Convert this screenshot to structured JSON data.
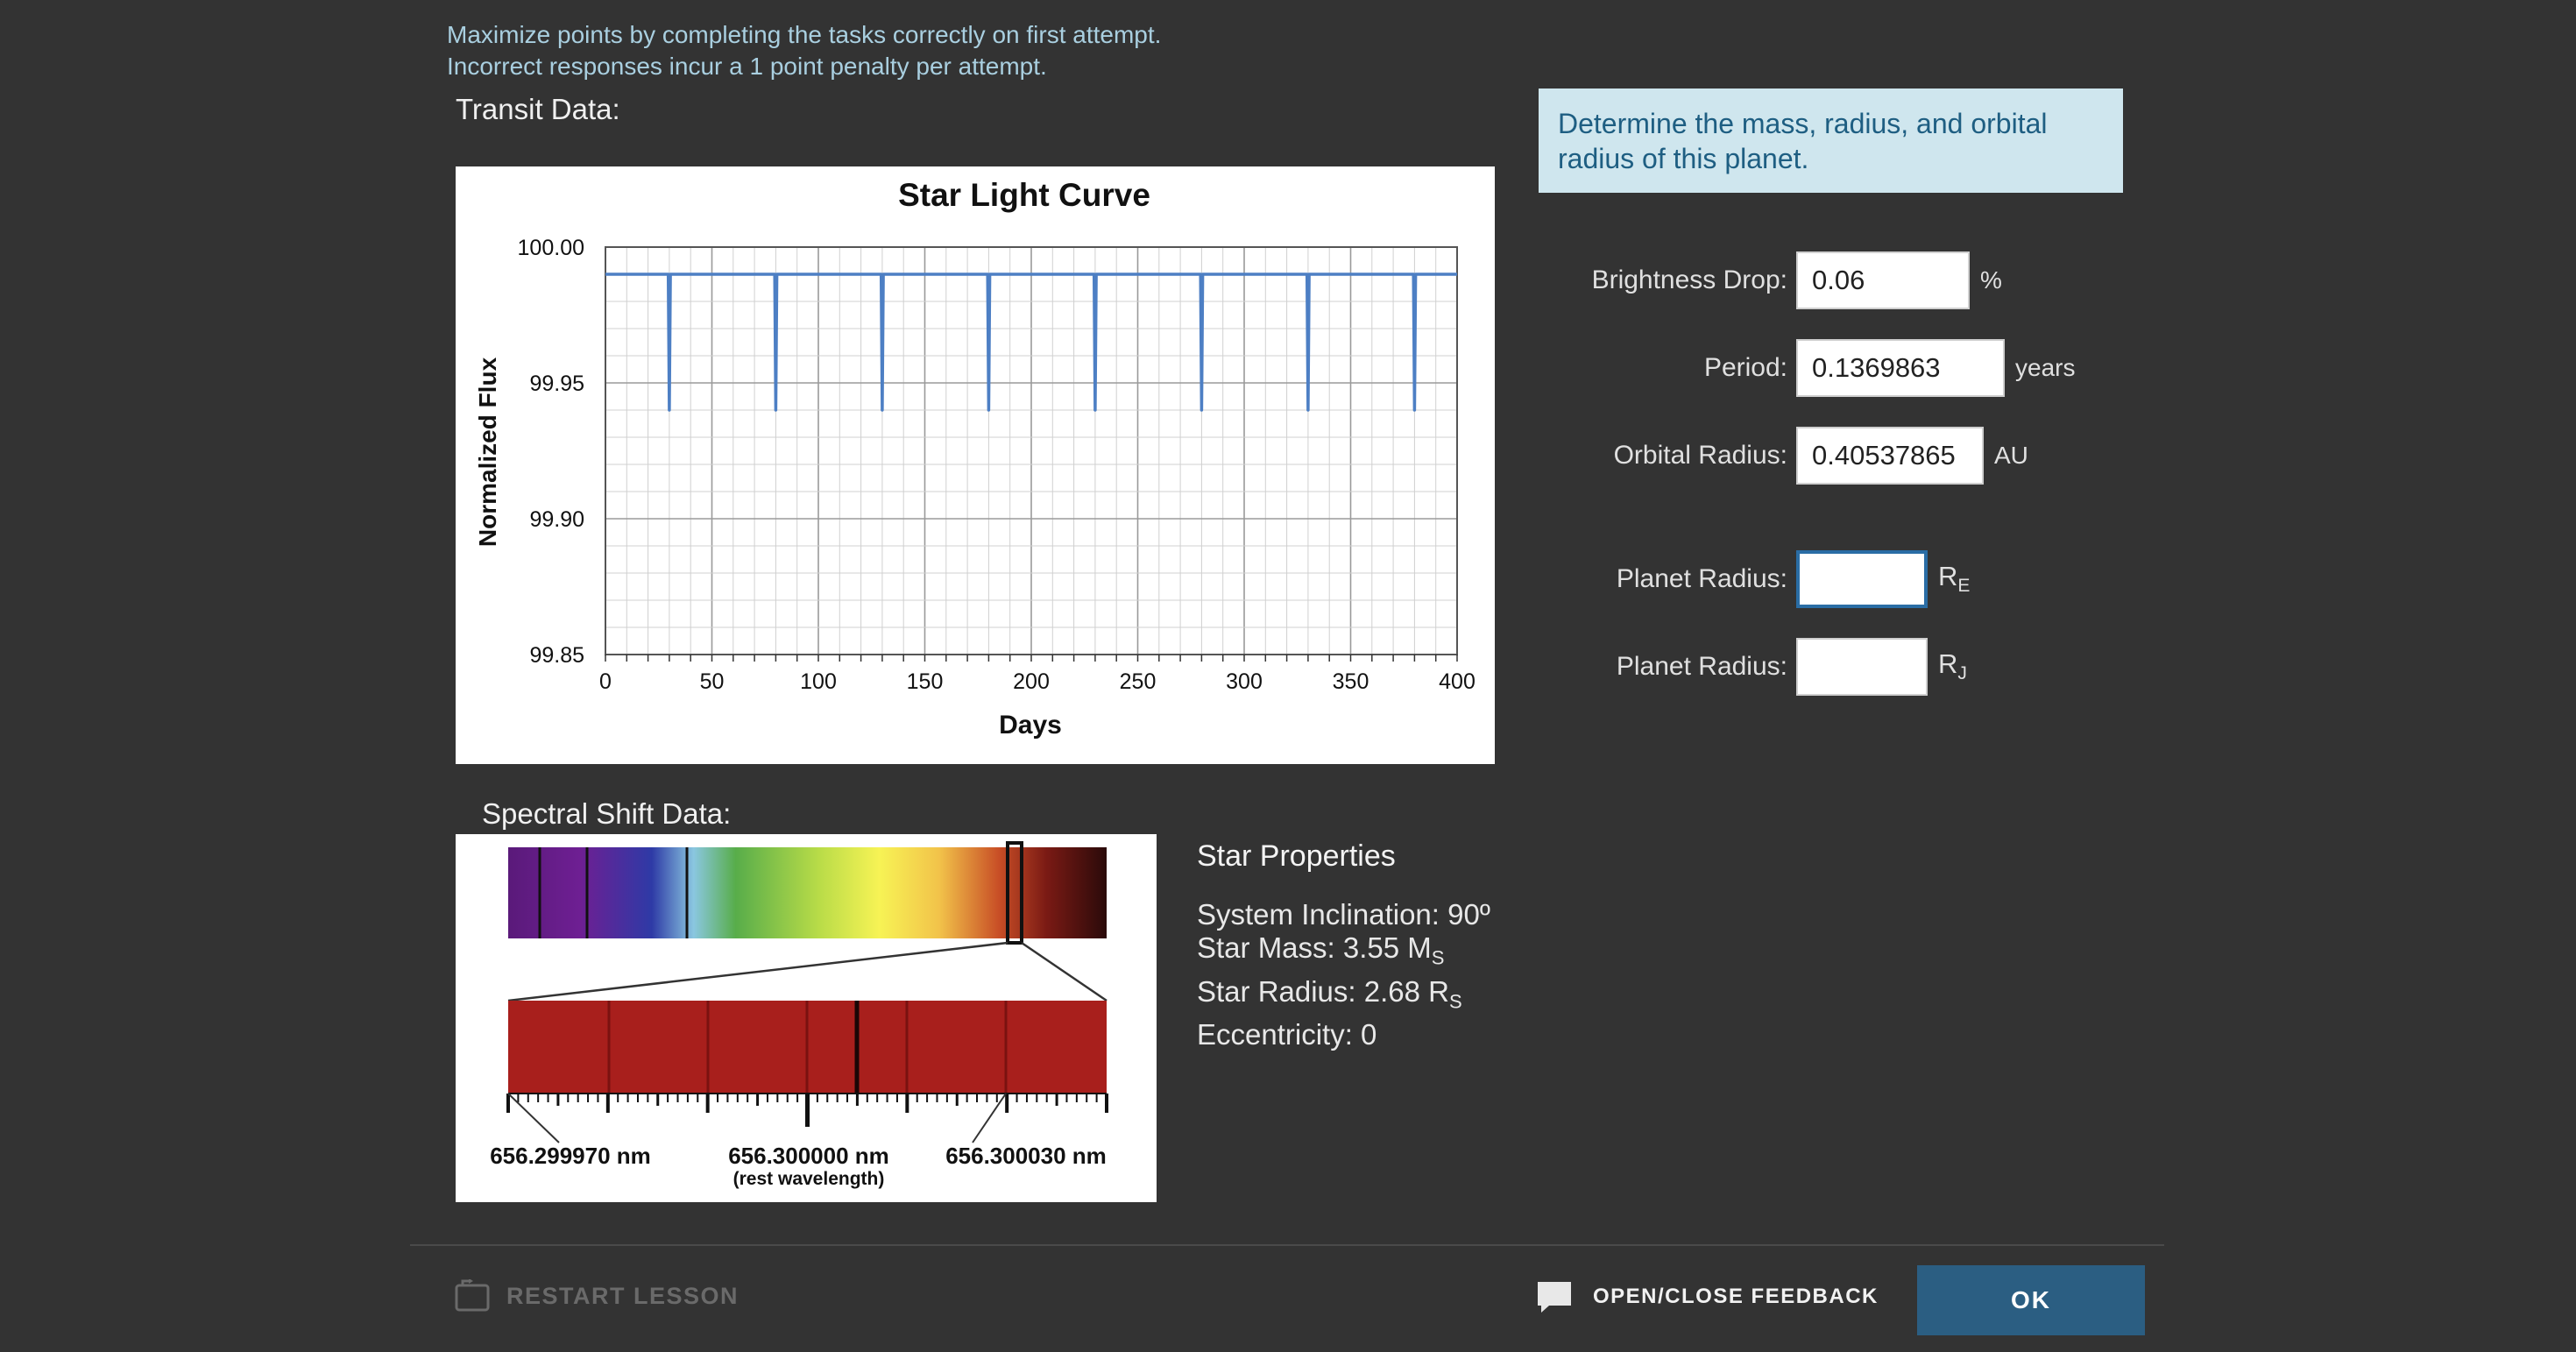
{
  "instructions": {
    "line1": "Maximize points by completing the tasks correctly on first attempt.",
    "line2": "Incorrect responses incur a 1 point penalty per attempt."
  },
  "transit": {
    "label": "Transit Data:"
  },
  "chart_data": {
    "type": "line",
    "title": "Star Light Curve",
    "xlabel": "Days",
    "ylabel": "Normalized Flux",
    "xlim": [
      0,
      400
    ],
    "ylim": [
      99.85,
      100.0
    ],
    "x_ticks": [
      "0",
      "50",
      "100",
      "150",
      "200",
      "250",
      "300",
      "350",
      "400"
    ],
    "y_ticks": [
      "100.00",
      "99.95",
      "99.90",
      "99.85"
    ],
    "baseline": 99.99,
    "transit_depth_flux": 99.94,
    "transit_days": [
      30,
      80,
      130,
      180,
      230,
      280,
      330,
      380
    ],
    "grid": true,
    "color": "#4d7fc4"
  },
  "spectral": {
    "label": "Spectral Shift Data:",
    "wl_left": "656.299970 nm",
    "wl_center": "656.300000 nm",
    "wl_center_note": "(rest wavelength)",
    "wl_right": "656.300030 nm"
  },
  "star": {
    "title": "Star Properties",
    "inclination": "System Inclination: 90º",
    "mass_prefix": "Star Mass: 3.55 M",
    "mass_sub": "S",
    "radius_prefix": "Star Radius: 2.68 R",
    "radius_sub": "S",
    "eccentricity": "Eccentricity: 0"
  },
  "task": {
    "text": "Determine the mass, radius, and orbital radius of this planet."
  },
  "fields": {
    "brightness": {
      "label": "Brightness Drop:",
      "value": "0.06",
      "unit": "%"
    },
    "period": {
      "label": "Period:",
      "value": "0.1369863",
      "unit": "years"
    },
    "orbital": {
      "label": "Orbital Radius:",
      "value": "0.40537865",
      "unit": "AU"
    },
    "radius_e": {
      "label": "Planet Radius:",
      "value": "",
      "unit_main": "R",
      "unit_sub": "E"
    },
    "radius_j": {
      "label": "Planet Radius:",
      "value": "",
      "unit_main": "R",
      "unit_sub": "J"
    }
  },
  "footer": {
    "restart": "RESTART LESSON",
    "feedback": "OPEN/CLOSE FEEDBACK",
    "ok": "OK"
  },
  "colors": {
    "background": "#333333",
    "accent": "#2b5e82",
    "task_bg": "#cfe6ee",
    "instruction_text": "#a9cfe0"
  }
}
